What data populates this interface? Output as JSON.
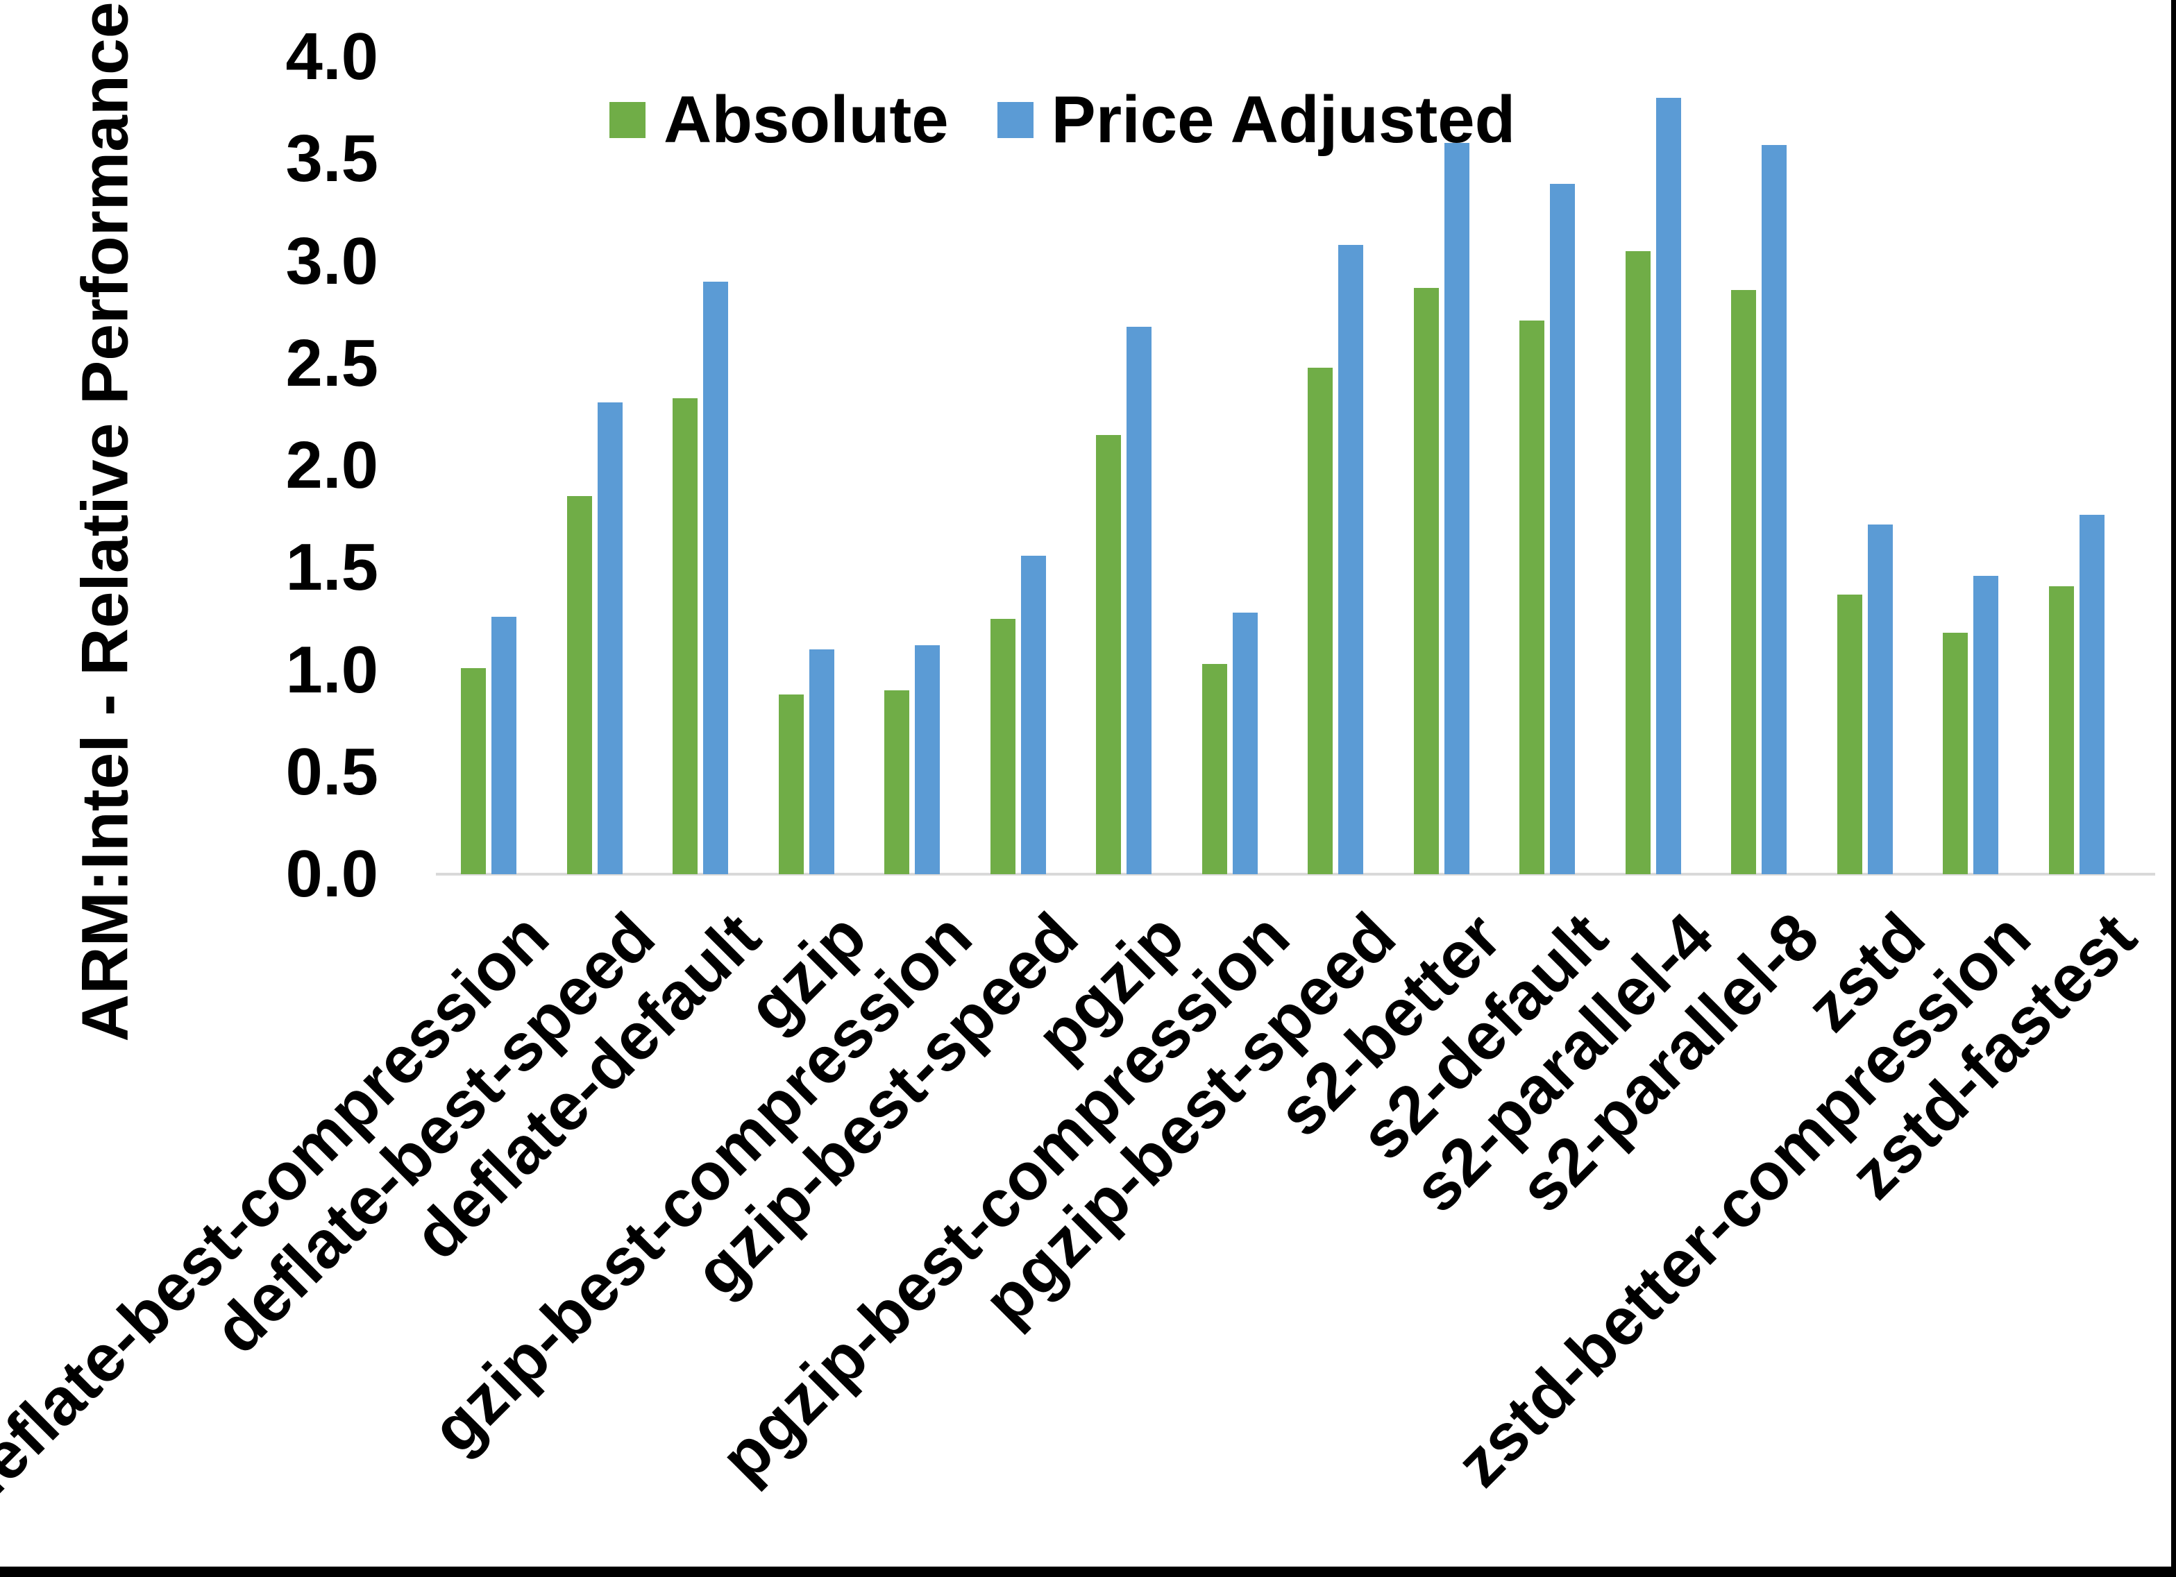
{
  "page": {
    "background": "#ffffff",
    "border_color": "#000000"
  },
  "chart_data": {
    "type": "bar",
    "title": "",
    "xlabel": "",
    "ylabel": "ARM:Intel - Relative Performance",
    "ylim": [
      0.0,
      4.0
    ],
    "ytick_step": 0.5,
    "ytick_labels": [
      "0.0",
      "0.5",
      "1.0",
      "1.5",
      "2.0",
      "2.5",
      "3.0",
      "3.5",
      "4.0"
    ],
    "grid": false,
    "legend_position": "top-center",
    "axis_line_color": "#D9D9D9",
    "text_color": "#000000",
    "categories": [
      "deflate-best-compression",
      "deflate-best-speed",
      "deflate-default",
      "gzip",
      "gzip-best-compression",
      "gzip-best-speed",
      "pgzip",
      "pgzip-best-compression",
      "pgzip-best-speed",
      "s2-better",
      "s2-default",
      "s2-parallel-4",
      "s2-parallel-8",
      "zstd",
      "zstd-better-compression",
      "zstd-fastest"
    ],
    "series": [
      {
        "name": "Absolute",
        "color": "#70AD47",
        "values": [
          1.01,
          1.85,
          2.33,
          0.88,
          0.9,
          1.25,
          2.15,
          1.03,
          2.48,
          2.87,
          2.71,
          3.05,
          2.86,
          1.37,
          1.18,
          1.41
        ]
      },
      {
        "name": "Price Adjusted",
        "color": "#5B9BD5",
        "values": [
          1.26,
          2.31,
          2.9,
          1.1,
          1.12,
          1.56,
          2.68,
          1.28,
          3.08,
          3.58,
          3.38,
          3.8,
          3.57,
          1.71,
          1.46,
          1.76
        ]
      }
    ]
  }
}
